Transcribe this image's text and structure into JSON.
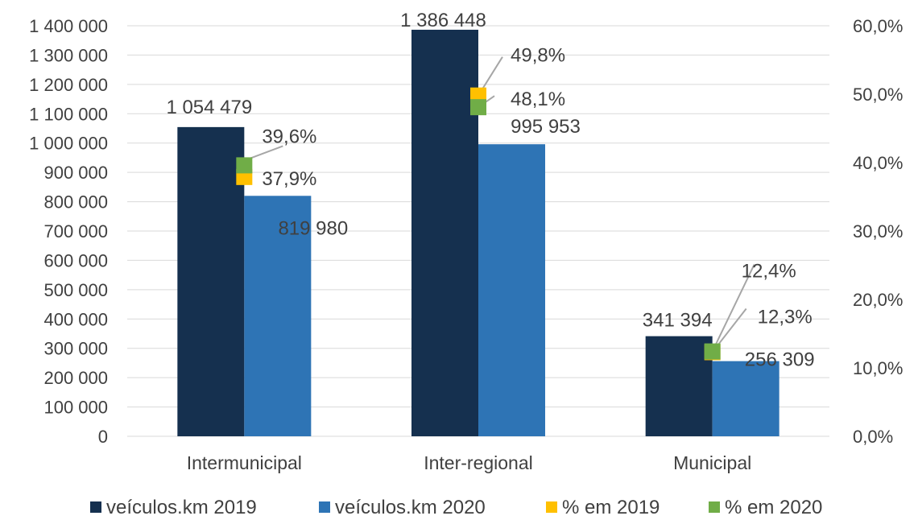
{
  "chart_data": {
    "type": "bar",
    "categories": [
      "Intermunicipal",
      "Inter-regional",
      "Municipal"
    ],
    "series": [
      {
        "name": "veículos.km 2019",
        "axis": "left",
        "kind": "bar",
        "color": "#15304f",
        "values": [
          1054479,
          1386448,
          341394
        ],
        "labels": [
          "1 054 479",
          "1 386 448",
          "341 394"
        ]
      },
      {
        "name": "veículos.km 2020",
        "axis": "left",
        "kind": "bar",
        "color": "#2e74b5",
        "values": [
          819980,
          995953,
          256309
        ],
        "labels": [
          "819 980",
          "995 953",
          "256 309"
        ]
      },
      {
        "name": "% em 2019",
        "axis": "right",
        "kind": "marker",
        "color": "#ffc000",
        "values": [
          37.9,
          49.8,
          12.3
        ],
        "labels": [
          "37,9%",
          "49,8%",
          "12,3%"
        ]
      },
      {
        "name": "% em 2020",
        "axis": "right",
        "kind": "marker",
        "color": "#70ad47",
        "values": [
          39.6,
          48.1,
          12.4
        ],
        "labels": [
          "39,6%",
          "48,1%",
          "12,4%"
        ]
      }
    ],
    "y_left": {
      "min": 0,
      "max": 1400000,
      "step": 100000,
      "ticks": [
        "0",
        "100 000",
        "200 000",
        "300 000",
        "400 000",
        "500 000",
        "600 000",
        "700 000",
        "800 000",
        "900 000",
        "1 000 000",
        "1 100 000",
        "1 200 000",
        "1 300 000",
        "1 400 000"
      ]
    },
    "y_right": {
      "min": 0,
      "max": 60,
      "step": 10,
      "ticks": [
        "0,0%",
        "10,0%",
        "20,0%",
        "30,0%",
        "40,0%",
        "50,0%",
        "60,0%"
      ]
    },
    "grid": true,
    "legend_position": "bottom"
  }
}
